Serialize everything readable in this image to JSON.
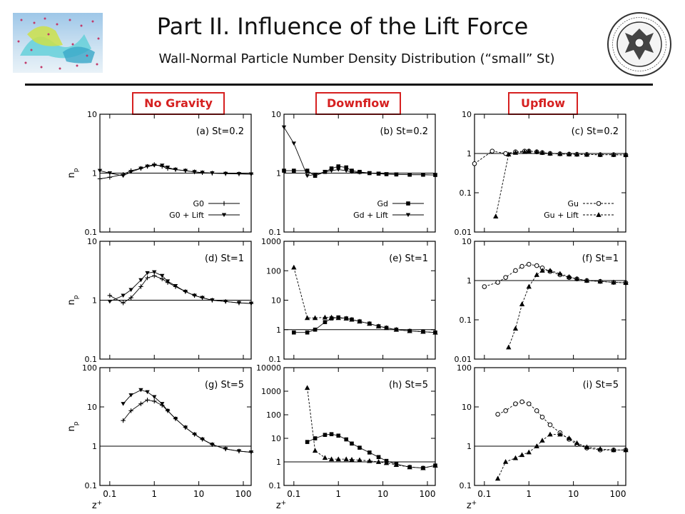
{
  "header": {
    "title": "Part II. Influence of the Lift Force",
    "subtitle": "Wall-Normal Particle Number Density Distribution (“small” St)"
  },
  "columns": [
    "No Gravity",
    "Downflow",
    "Upflow"
  ],
  "colors": {
    "label_red": "#d62020",
    "axis": "#000000"
  },
  "chart_data": [
    {
      "type": "line",
      "panel": "(a) St=0.2",
      "ylabel": "np",
      "xlabel": "",
      "xscale": "log",
      "yscale": "log",
      "xlim": [
        0.06,
        150
      ],
      "ylim": [
        0.1,
        10
      ],
      "yticks": [
        "0.1",
        "1",
        "10"
      ],
      "reference_line": 1,
      "legend": {
        "placement": "lower-right",
        "entries": [
          "G0",
          "G0 + Lift"
        ]
      },
      "series": [
        {
          "name": "G0",
          "marker": "plus",
          "x": [
            0.06,
            0.1,
            0.2,
            0.3,
            0.5,
            0.7,
            1,
            1.5,
            2,
            3,
            5,
            8,
            12,
            20,
            40,
            80,
            150
          ],
          "y": [
            0.8,
            0.85,
            0.95,
            1.1,
            1.2,
            1.3,
            1.4,
            1.3,
            1.2,
            1.15,
            1.1,
            1.05,
            1.02,
            1,
            0.98,
            0.97,
            0.96
          ]
        },
        {
          "name": "G0 + Lift",
          "marker": "triangle-down",
          "x": [
            0.06,
            0.1,
            0.2,
            0.3,
            0.5,
            0.7,
            1,
            1.5,
            2,
            3,
            5,
            8,
            12,
            20,
            40,
            80,
            150
          ],
          "y": [
            1.1,
            1.0,
            0.9,
            1.05,
            1.2,
            1.3,
            1.35,
            1.35,
            1.25,
            1.15,
            1.1,
            1.05,
            1.02,
            1,
            0.98,
            0.97,
            0.96
          ]
        }
      ]
    },
    {
      "type": "line",
      "panel": "(b) St=0.2",
      "xscale": "log",
      "yscale": "log",
      "xlim": [
        0.06,
        150
      ],
      "ylim": [
        0.1,
        10
      ],
      "yticks": [
        "0.1",
        "1",
        "10"
      ],
      "reference_line": 1,
      "legend": {
        "placement": "lower-right",
        "entries": [
          "Gd",
          "Gd + Lift"
        ]
      },
      "series": [
        {
          "name": "Gd",
          "marker": "square",
          "x": [
            0.06,
            0.1,
            0.2,
            0.3,
            0.5,
            0.7,
            1,
            1.5,
            2,
            3,
            5,
            8,
            12,
            20,
            40,
            80,
            150
          ],
          "y": [
            1.1,
            1.1,
            1.1,
            0.9,
            1.05,
            1.2,
            1.3,
            1.25,
            1.1,
            1.05,
            1.0,
            0.98,
            0.96,
            0.95,
            0.94,
            0.94,
            0.93
          ]
        },
        {
          "name": "Gd + Lift",
          "marker": "triangle-down",
          "x": [
            0.06,
            0.1,
            0.2,
            0.3,
            0.5,
            0.7,
            1,
            1.5,
            2,
            3,
            5,
            8,
            12,
            20,
            40,
            80,
            150
          ],
          "y": [
            6,
            3.2,
            0.9,
            0.95,
            1.05,
            1.1,
            1.15,
            1.1,
            1.05,
            1.02,
            1.0,
            0.98,
            0.96,
            0.95,
            0.94,
            0.94,
            0.93
          ]
        }
      ]
    },
    {
      "type": "line",
      "panel": "(c) St=0.2",
      "xscale": "log",
      "yscale": "log",
      "xlim": [
        0.06,
        150
      ],
      "ylim": [
        0.01,
        10
      ],
      "yticks": [
        "0.01",
        "0.1",
        "1",
        "10"
      ],
      "reference_line": 1,
      "legend": {
        "placement": "lower-right",
        "entries": [
          "Gu",
          "Gu + Lift"
        ]
      },
      "series": [
        {
          "name": "Gu",
          "marker": "circle",
          "x": [
            0.06,
            0.15,
            0.3,
            0.5,
            0.8,
            1,
            1.5,
            2,
            3,
            5,
            8,
            12,
            20,
            40,
            80,
            150
          ],
          "y": [
            0.55,
            1.15,
            1.0,
            1.1,
            1.15,
            1.15,
            1.1,
            1.05,
            1.0,
            0.98,
            0.96,
            0.95,
            0.94,
            0.93,
            0.93,
            0.92
          ]
        },
        {
          "name": "Gu + Lift",
          "marker": "triangle-up",
          "x": [
            0.18,
            0.35,
            0.5,
            0.8,
            1,
            1.5,
            2,
            3,
            5,
            8,
            12,
            20,
            40,
            80,
            150
          ],
          "y": [
            0.025,
            0.95,
            1.05,
            1.1,
            1.15,
            1.1,
            1.05,
            1.0,
            0.98,
            0.96,
            0.95,
            0.94,
            0.93,
            0.93,
            0.92
          ]
        }
      ]
    },
    {
      "type": "line",
      "panel": "(d) St=1",
      "ylabel": "np",
      "xscale": "log",
      "yscale": "log",
      "xlim": [
        0.06,
        150
      ],
      "ylim": [
        0.1,
        10
      ],
      "yticks": [
        "0.1",
        "1",
        "10"
      ],
      "reference_line": 1,
      "series": [
        {
          "name": "",
          "marker": "plus",
          "x": [
            0.1,
            0.2,
            0.3,
            0.5,
            0.7,
            1,
            1.5,
            2,
            3,
            5,
            8,
            12,
            20,
            40,
            80,
            150
          ],
          "y": [
            1.2,
            0.9,
            1.1,
            1.7,
            2.4,
            2.6,
            2.3,
            2.0,
            1.7,
            1.4,
            1.2,
            1.1,
            1.0,
            0.95,
            0.9,
            0.88
          ]
        },
        {
          "name": "",
          "marker": "triangle-down",
          "x": [
            0.1,
            0.2,
            0.3,
            0.5,
            0.7,
            1,
            1.5,
            2,
            3,
            5,
            8,
            12,
            20,
            40,
            80,
            150
          ],
          "y": [
            0.95,
            1.2,
            1.5,
            2.2,
            2.9,
            3.0,
            2.6,
            2.1,
            1.75,
            1.4,
            1.2,
            1.1,
            1.0,
            0.95,
            0.9,
            0.88
          ]
        }
      ]
    },
    {
      "type": "line",
      "panel": "(e) St=1",
      "xscale": "log",
      "yscale": "log",
      "xlim": [
        0.06,
        150
      ],
      "ylim": [
        0.1,
        1000
      ],
      "yticks": [
        "0.1",
        "1",
        "10",
        "100",
        "1000"
      ],
      "reference_line": 1,
      "series": [
        {
          "name": "",
          "marker": "square",
          "x": [
            0.1,
            0.2,
            0.3,
            0.5,
            0.7,
            1,
            1.5,
            2,
            3,
            5,
            8,
            12,
            20,
            40,
            80,
            150
          ],
          "y": [
            0.8,
            0.8,
            1.0,
            1.8,
            2.4,
            2.6,
            2.4,
            2.2,
            1.9,
            1.6,
            1.3,
            1.15,
            1.0,
            0.9,
            0.85,
            0.8
          ]
        },
        {
          "name": "",
          "marker": "triangle-up",
          "x": [
            0.1,
            0.2,
            0.3,
            0.5,
            0.7,
            1,
            1.5,
            2,
            3,
            5,
            8,
            12,
            20,
            40,
            80,
            150
          ],
          "y": [
            130,
            2.5,
            2.5,
            2.6,
            2.6,
            2.5,
            2.4,
            2.2,
            1.9,
            1.6,
            1.3,
            1.15,
            1.0,
            0.9,
            0.85,
            0.8
          ]
        }
      ]
    },
    {
      "type": "line",
      "panel": "(f) St=1",
      "xscale": "log",
      "yscale": "log",
      "xlim": [
        0.06,
        150
      ],
      "ylim": [
        0.01,
        10
      ],
      "yticks": [
        "0.01",
        "0.1",
        "1",
        "10"
      ],
      "reference_line": 1,
      "series": [
        {
          "name": "",
          "marker": "circle",
          "x": [
            0.1,
            0.2,
            0.3,
            0.5,
            0.7,
            1,
            1.5,
            2,
            3,
            5,
            8,
            12,
            20,
            40,
            80,
            150
          ],
          "y": [
            0.7,
            0.9,
            1.2,
            1.8,
            2.3,
            2.6,
            2.4,
            2.1,
            1.7,
            1.4,
            1.2,
            1.1,
            1.0,
            0.95,
            0.9,
            0.88
          ]
        },
        {
          "name": "",
          "marker": "triangle-up",
          "x": [
            0.35,
            0.5,
            0.7,
            1,
            1.5,
            2,
            3,
            5,
            8,
            12,
            20,
            40,
            80,
            150
          ],
          "y": [
            0.02,
            0.06,
            0.25,
            0.7,
            1.4,
            1.8,
            1.8,
            1.5,
            1.25,
            1.1,
            1.0,
            0.95,
            0.9,
            0.88
          ]
        }
      ]
    },
    {
      "type": "line",
      "panel": "(g) St=5",
      "ylabel": "np",
      "xscale": "log",
      "yscale": "log",
      "xlim": [
        0.06,
        150
      ],
      "ylim": [
        0.1,
        100
      ],
      "yticks": [
        "0.1",
        "1",
        "10",
        "100"
      ],
      "reference_line": 1,
      "series": [
        {
          "name": "",
          "marker": "plus",
          "x": [
            0.2,
            0.3,
            0.5,
            0.7,
            1,
            1.5,
            2,
            3,
            5,
            8,
            12,
            20,
            40,
            80,
            150
          ],
          "y": [
            4.5,
            8,
            12,
            15,
            14,
            11,
            8,
            5,
            3,
            2,
            1.5,
            1.1,
            0.85,
            0.75,
            0.7
          ]
        },
        {
          "name": "",
          "marker": "triangle-down",
          "x": [
            0.2,
            0.3,
            0.5,
            0.7,
            1,
            1.5,
            2,
            3,
            5,
            8,
            12,
            20,
            40,
            80,
            150
          ],
          "y": [
            12,
            20,
            27,
            24,
            18,
            12,
            8,
            5,
            3,
            2,
            1.5,
            1.1,
            0.85,
            0.75,
            0.7
          ]
        }
      ]
    },
    {
      "type": "line",
      "panel": "(h) St=5",
      "xscale": "log",
      "yscale": "log",
      "xlim": [
        0.06,
        150
      ],
      "ylim": [
        0.1,
        10000
      ],
      "yticks": [
        "0.1",
        "1",
        "10",
        "100",
        "1000",
        "10000"
      ],
      "reference_line": 1,
      "series": [
        {
          "name": "",
          "marker": "square",
          "x": [
            0.2,
            0.3,
            0.5,
            0.7,
            1,
            1.5,
            2,
            3,
            5,
            8,
            12,
            20,
            40,
            80,
            150
          ],
          "y": [
            7,
            10,
            14,
            15,
            13,
            9,
            6,
            4,
            2.5,
            1.6,
            1.1,
            0.8,
            0.6,
            0.55,
            0.7
          ]
        },
        {
          "name": "",
          "marker": "triangle-up",
          "x": [
            0.2,
            0.3,
            0.5,
            0.7,
            1,
            1.5,
            2,
            3,
            5,
            8,
            12,
            20,
            40,
            80,
            150
          ],
          "y": [
            1400,
            3,
            1.5,
            1.3,
            1.3,
            1.3,
            1.25,
            1.2,
            1.1,
            1.0,
            0.9,
            0.75,
            0.6,
            0.55,
            0.7
          ]
        }
      ]
    },
    {
      "type": "line",
      "panel": "(i) St=5",
      "xscale": "log",
      "yscale": "log",
      "xlim": [
        0.06,
        150
      ],
      "ylim": [
        0.1,
        100
      ],
      "yticks": [
        "0.1",
        "1",
        "10",
        "100"
      ],
      "reference_line": 1,
      "series": [
        {
          "name": "",
          "marker": "circle",
          "x": [
            0.2,
            0.3,
            0.5,
            0.7,
            1,
            1.5,
            2,
            3,
            5,
            8,
            12,
            20,
            40,
            80,
            150
          ],
          "y": [
            6.5,
            8,
            12,
            13.5,
            12,
            8,
            5.5,
            3.5,
            2.2,
            1.5,
            1.1,
            0.9,
            0.8,
            0.8,
            0.8
          ]
        },
        {
          "name": "",
          "marker": "triangle-up",
          "x": [
            0.2,
            0.3,
            0.5,
            0.7,
            1,
            1.5,
            2,
            3,
            5,
            8,
            12,
            20,
            40,
            80,
            150
          ],
          "y": [
            0.15,
            0.4,
            0.5,
            0.6,
            0.7,
            1.0,
            1.4,
            2.0,
            2.0,
            1.6,
            1.2,
            0.95,
            0.85,
            0.8,
            0.8
          ]
        }
      ]
    }
  ],
  "axes_common": {
    "xticks": [
      "0.1",
      "1",
      "10",
      "100"
    ],
    "xlabel": "z+",
    "ylabel": "np"
  }
}
